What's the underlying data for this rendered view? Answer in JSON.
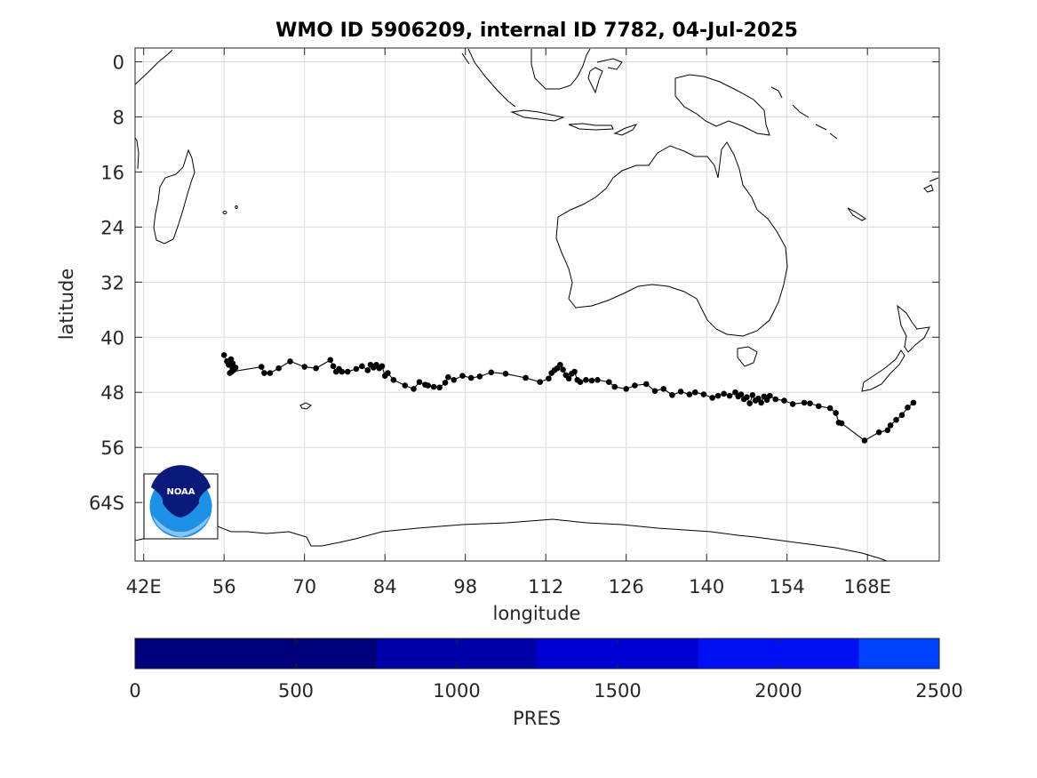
{
  "figure": {
    "title": "WMO ID 5906209, internal ID 7782, 04-Jul-2025",
    "xlabel": "longitude",
    "ylabel": "latitude",
    "logo_text": "NOAA"
  },
  "map": {
    "lon_range": [
      40.5,
      180.5
    ],
    "lat_range": [
      -72.5,
      2.0
    ],
    "x_ticks": [
      {
        "value": 42,
        "label": "42E"
      },
      {
        "value": 56,
        "label": "56"
      },
      {
        "value": 70,
        "label": "70"
      },
      {
        "value": 84,
        "label": "84"
      },
      {
        "value": 98,
        "label": "98"
      },
      {
        "value": 112,
        "label": "112"
      },
      {
        "value": 126,
        "label": "126"
      },
      {
        "value": 140,
        "label": "140"
      },
      {
        "value": 154,
        "label": "154"
      },
      {
        "value": 168,
        "label": "168E"
      }
    ],
    "y_ticks": [
      {
        "value": 0,
        "label": "0"
      },
      {
        "value": -8,
        "label": "8"
      },
      {
        "value": -16,
        "label": "16"
      },
      {
        "value": -24,
        "label": "24"
      },
      {
        "value": -32,
        "label": "32"
      },
      {
        "value": -40,
        "label": "40"
      },
      {
        "value": -48,
        "label": "48"
      },
      {
        "value": -56,
        "label": "56"
      },
      {
        "value": -64,
        "label": "64S"
      }
    ],
    "track_color": "#000000"
  },
  "colorbar": {
    "label": "PRES",
    "ticks": [
      "0",
      "500",
      "1000",
      "1500",
      "2000",
      "2500"
    ],
    "tick_values": [
      0,
      500,
      1000,
      1500,
      2000,
      2500
    ],
    "range": [
      0,
      2500
    ],
    "bands": [
      {
        "from": 0,
        "to": 750,
        "color": "#00007a"
      },
      {
        "from": 750,
        "to": 1250,
        "color": "#0000a8"
      },
      {
        "from": 1250,
        "to": 1750,
        "color": "#0000d4"
      },
      {
        "from": 1750,
        "to": 2250,
        "color": "#0010f5"
      },
      {
        "from": 2250,
        "to": 2500,
        "color": "#0040ff"
      }
    ]
  },
  "chart_data": {
    "type": "scatter",
    "x": [
      56.0,
      56.5,
      57.0,
      57.2,
      57.6,
      57.0,
      57.5,
      58.0,
      56.8,
      57.3,
      62.5,
      63.0,
      64.0,
      65.5,
      67.5,
      70.0,
      72.0,
      74.5,
      75.0,
      75.5,
      76.0,
      76.5,
      77.5,
      79.0,
      80.0,
      81.0,
      81.5,
      82.0,
      82.5,
      83.0,
      83.5,
      84.0,
      84.5,
      85.5,
      87.5,
      89.0,
      90.0,
      91.0,
      91.5,
      92.5,
      93.5,
      94.5,
      95.0,
      96.0,
      97.5,
      99.0,
      100.5,
      102.5,
      105.0,
      108.5,
      111.0,
      112.5,
      113.0,
      113.5,
      114.0,
      114.5,
      115.0,
      115.5,
      116.0,
      116.5,
      117.0,
      117.5,
      118.0,
      119.0,
      120.0,
      121.0,
      123.0,
      124.0,
      126.0,
      127.5,
      129.5,
      131.0,
      132.5,
      134.0,
      135.5,
      137.0,
      138.0,
      139.5,
      141.0,
      142.0,
      143.0,
      144.0,
      145.0,
      145.5,
      146.0,
      146.5,
      147.0,
      147.5,
      148.0,
      148.5,
      149.0,
      149.5,
      150.0,
      150.5,
      151.0,
      152.0,
      153.5,
      155.0,
      157.0,
      158.0,
      159.5,
      161.5,
      162.5,
      163.0,
      163.5,
      167.5,
      170.0,
      171.5,
      172.0,
      173.0,
      174.0,
      175.0,
      176.0
    ],
    "y": [
      -42.6,
      -43.5,
      -44.0,
      -43.2,
      -44.8,
      -45.2,
      -43.8,
      -44.4,
      -44.0,
      -45.0,
      -44.3,
      -45.2,
      -45.2,
      -44.5,
      -43.5,
      -44.3,
      -44.5,
      -43.3,
      -44.2,
      -45.0,
      -44.6,
      -45.0,
      -45.0,
      -44.6,
      -44.2,
      -44.8,
      -44.0,
      -44.4,
      -44.0,
      -44.5,
      -44.2,
      -45.6,
      -45.2,
      -46.2,
      -47.0,
      -47.5,
      -46.5,
      -46.9,
      -47.0,
      -47.2,
      -47.3,
      -46.6,
      -45.8,
      -46.2,
      -45.6,
      -45.9,
      -45.7,
      -45.1,
      -45.3,
      -45.9,
      -46.5,
      -46.0,
      -45.2,
      -44.8,
      -44.5,
      -44.0,
      -44.7,
      -45.5,
      -46.0,
      -45.3,
      -45.0,
      -46.2,
      -46.5,
      -46.2,
      -46.3,
      -46.2,
      -46.5,
      -47.2,
      -47.5,
      -47.0,
      -46.8,
      -47.8,
      -47.5,
      -48.4,
      -47.9,
      -48.3,
      -48.0,
      -48.3,
      -48.8,
      -48.5,
      -48.2,
      -48.5,
      -48.0,
      -48.6,
      -48.3,
      -49.0,
      -48.7,
      -49.6,
      -48.4,
      -49.2,
      -48.9,
      -49.5,
      -48.6,
      -49.1,
      -48.5,
      -49.0,
      -49.2,
      -49.7,
      -49.5,
      -49.6,
      -50.0,
      -50.3,
      -51.0,
      -52.4,
      -52.5,
      -55.0,
      -53.8,
      -53.5,
      -52.8,
      -52.0,
      -51.3,
      -50.2,
      -49.5
    ],
    "xlabel": "longitude",
    "ylabel": "latitude",
    "title": "WMO ID 5906209, internal ID 7782, 04-Jul-2025",
    "xlim": [
      40.5,
      180.5
    ],
    "ylim": [
      -72.5,
      2.0
    ]
  }
}
